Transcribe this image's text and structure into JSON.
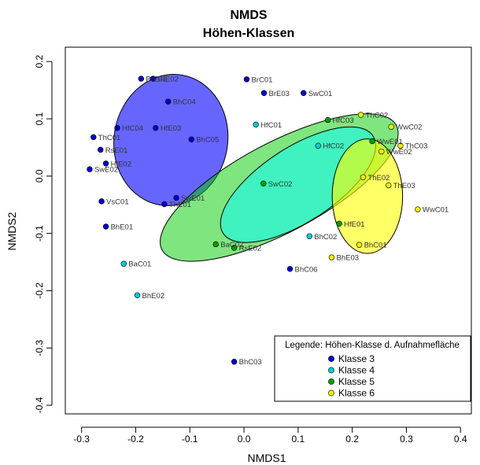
{
  "chart_data": {
    "type": "scatter",
    "title": "NMDS",
    "subtitle": "Höhen-Klassen",
    "xlabel": "NMDS1",
    "ylabel": "NMDS2",
    "xlim": [
      -0.33,
      0.42
    ],
    "ylim": [
      -0.415,
      0.225
    ],
    "x_ticks": [
      -0.3,
      -0.2,
      -0.1,
      0.0,
      0.1,
      0.2,
      0.3,
      0.4
    ],
    "x_tick_labels": [
      "-0.3",
      "-0.2",
      "-0.1",
      "0.0",
      "0.1",
      "0.2",
      "0.3",
      "0.4"
    ],
    "y_ticks": [
      -0.4,
      -0.3,
      -0.2,
      -0.1,
      0.0,
      0.1,
      0.2
    ],
    "y_tick_labels": [
      "-0.4",
      "-0.3",
      "-0.2",
      "-0.1",
      "0.0",
      "0.1",
      "0.2"
    ],
    "grid": false,
    "legend": {
      "title": "Legende: Höhen-Klasse d. Aufnahmefläche",
      "position": "bottom-right"
    },
    "series": [
      {
        "name": "Klasse 3",
        "color": "#0000CD",
        "ellipse_color": "#0000FF",
        "points": [
          {
            "label": "BrE01",
            "x": -0.19,
            "y": 0.17
          },
          {
            "label": "BrE02",
            "x": -0.168,
            "y": 0.17
          },
          {
            "label": "BrC01",
            "x": 0.005,
            "y": 0.169
          },
          {
            "label": "BrE03",
            "x": 0.037,
            "y": 0.145
          },
          {
            "label": "SwC01",
            "x": 0.11,
            "y": 0.145
          },
          {
            "label": "BhC04",
            "x": -0.14,
            "y": 0.13
          },
          {
            "label": "HfC04",
            "x": -0.234,
            "y": 0.084
          },
          {
            "label": "HfE03",
            "x": -0.163,
            "y": 0.084
          },
          {
            "label": "BhC05",
            "x": -0.097,
            "y": 0.064
          },
          {
            "label": "ThC01",
            "x": -0.278,
            "y": 0.068
          },
          {
            "label": "RsE01",
            "x": -0.265,
            "y": 0.046
          },
          {
            "label": "HfE02",
            "x": -0.255,
            "y": 0.022
          },
          {
            "label": "SwE02",
            "x": -0.285,
            "y": 0.012
          },
          {
            "label": "VsC01",
            "x": -0.263,
            "y": -0.044
          },
          {
            "label": "SwE01",
            "x": -0.125,
            "y": -0.038
          },
          {
            "label": "ThE01",
            "x": -0.147,
            "y": -0.049
          },
          {
            "label": "BhE01",
            "x": -0.255,
            "y": -0.088
          },
          {
            "label": "BhC06",
            "x": 0.085,
            "y": -0.162
          },
          {
            "label": "BhC03",
            "x": -0.018,
            "y": -0.324
          }
        ]
      },
      {
        "name": "Klasse 4",
        "color": "#00CED1",
        "ellipse_color": "#00FFFF",
        "points": [
          {
            "label": "HfC01",
            "x": 0.022,
            "y": 0.09
          },
          {
            "label": "HfC02",
            "x": 0.137,
            "y": 0.053
          },
          {
            "label": "BhC02",
            "x": 0.121,
            "y": -0.105
          },
          {
            "label": "BaC01",
            "x": -0.222,
            "y": -0.153
          },
          {
            "label": "BhE02",
            "x": -0.197,
            "y": -0.208
          }
        ]
      },
      {
        "name": "Klasse 5",
        "color": "#00A000",
        "ellipse_color": "#00CC00",
        "points": [
          {
            "label": "HfC03",
            "x": 0.155,
            "y": 0.098
          },
          {
            "label": "WwE01",
            "x": 0.237,
            "y": 0.061
          },
          {
            "label": "SwC02",
            "x": 0.036,
            "y": -0.013
          },
          {
            "label": "HfE01",
            "x": 0.176,
            "y": -0.083
          },
          {
            "label": "BaC02",
            "x": -0.052,
            "y": -0.119
          },
          {
            "label": "RsE02",
            "x": -0.018,
            "y": -0.125
          }
        ]
      },
      {
        "name": "Klasse 6",
        "color": "#EEEE00",
        "ellipse_color": "#FFFF00",
        "points": [
          {
            "label": "ThC02",
            "x": 0.216,
            "y": 0.107
          },
          {
            "label": "WwC02",
            "x": 0.272,
            "y": 0.086
          },
          {
            "label": "ThC03",
            "x": 0.289,
            "y": 0.053
          },
          {
            "label": "WwE02",
            "x": 0.254,
            "y": 0.043
          },
          {
            "label": "ThE02",
            "x": 0.22,
            "y": -0.002
          },
          {
            "label": "ThE03",
            "x": 0.267,
            "y": -0.016
          },
          {
            "label": "WwC01",
            "x": 0.321,
            "y": -0.058
          },
          {
            "label": "BhC01",
            "x": 0.213,
            "y": -0.12
          },
          {
            "label": "BhE03",
            "x": 0.162,
            "y": -0.142
          }
        ]
      }
    ],
    "ellipses": [
      {
        "series": "Klasse 3",
        "cx": -0.135,
        "cy": 0.063,
        "rx": 0.105,
        "ry": 0.115,
        "angle": -10,
        "opacity": 0.6
      },
      {
        "series": "Klasse 5",
        "cx": 0.065,
        "cy": -0.02,
        "rx": 0.245,
        "ry": 0.078,
        "angle": 28,
        "opacity": 0.5
      },
      {
        "series": "Klasse 4",
        "cx": 0.1,
        "cy": -0.015,
        "rx": 0.165,
        "ry": 0.065,
        "angle": 33,
        "opacity": 0.5
      },
      {
        "series": "Klasse 6",
        "cx": 0.228,
        "cy": -0.035,
        "rx": 0.065,
        "ry": 0.1,
        "angle": 0,
        "opacity": 0.6
      }
    ]
  }
}
